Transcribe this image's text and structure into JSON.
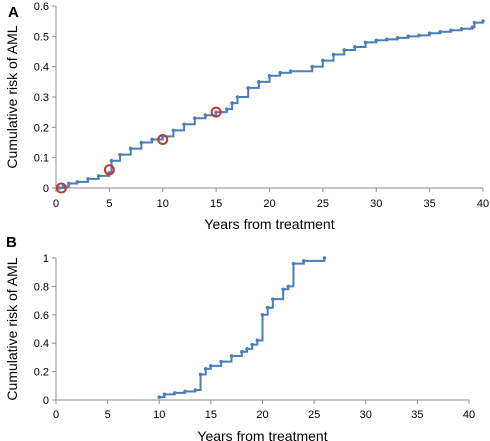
{
  "chart_data": [
    {
      "panel": "A",
      "type": "line",
      "step": true,
      "xlabel": "Years from treatment",
      "ylabel": "Cumulative risk of AML",
      "xlim": [
        0,
        40
      ],
      "ylim": [
        0,
        0.6
      ],
      "xticks": [
        0,
        5,
        10,
        15,
        20,
        25,
        30,
        35,
        40
      ],
      "yticks": [
        0,
        0.1,
        0.2,
        0.3,
        0.4,
        0.5,
        0.6
      ],
      "ytick_labels": [
        "0",
        "0.1",
        "0.2",
        "0.3",
        "0.4",
        "0.5",
        "0.6"
      ],
      "grid": false,
      "series": [
        {
          "color": "#4a7ebb",
          "x": [
            0.3,
            0.7,
            1.2,
            2,
            3,
            4,
            5,
            5.2,
            6,
            7,
            8,
            9,
            10,
            11,
            12,
            13,
            14,
            15,
            16,
            16.5,
            17,
            18,
            19,
            20,
            21,
            22,
            24,
            25,
            26,
            27,
            28,
            29,
            30,
            31,
            32,
            33,
            34,
            35,
            36,
            37,
            38,
            39,
            39.2,
            40
          ],
          "y": [
            0,
            0.005,
            0.015,
            0.02,
            0.03,
            0.04,
            0.05,
            0.09,
            0.11,
            0.13,
            0.15,
            0.16,
            0.17,
            0.19,
            0.21,
            0.23,
            0.24,
            0.25,
            0.26,
            0.28,
            0.3,
            0.33,
            0.35,
            0.37,
            0.38,
            0.385,
            0.4,
            0.42,
            0.44,
            0.455,
            0.465,
            0.48,
            0.487,
            0.49,
            0.495,
            0.5,
            0.503,
            0.51,
            0.515,
            0.52,
            0.525,
            0.53,
            0.545,
            0.55
          ]
        }
      ],
      "markers": {
        "color": "#c0392b",
        "x": [
          0.5,
          5,
          10,
          15
        ],
        "y": [
          0,
          0.06,
          0.16,
          0.25
        ]
      }
    },
    {
      "panel": "B",
      "type": "line",
      "step": true,
      "xlabel": "Years from treatment",
      "ylabel": "Cumulative risk of AML",
      "xlim": [
        0,
        40
      ],
      "ylim": [
        0,
        1
      ],
      "xticks": [
        0,
        5,
        10,
        15,
        20,
        25,
        30,
        35,
        40
      ],
      "yticks": [
        0,
        0.2,
        0.4,
        0.6,
        0.8,
        1
      ],
      "ytick_labels": [
        "0",
        "0.2",
        "0.4",
        "0.6",
        "0.8",
        "1"
      ],
      "grid": false,
      "series": [
        {
          "color": "#4a7ebb",
          "x": [
            10,
            10.5,
            11.5,
            12.5,
            13.5,
            14,
            14.5,
            15,
            16,
            17,
            18,
            18.5,
            19,
            19.5,
            20,
            20.5,
            21,
            22,
            22.5,
            23,
            24,
            26
          ],
          "y": [
            0.02,
            0.04,
            0.05,
            0.06,
            0.07,
            0.18,
            0.22,
            0.24,
            0.27,
            0.31,
            0.34,
            0.36,
            0.39,
            0.42,
            0.6,
            0.65,
            0.71,
            0.78,
            0.8,
            0.96,
            0.98,
            1.0
          ]
        }
      ]
    }
  ]
}
